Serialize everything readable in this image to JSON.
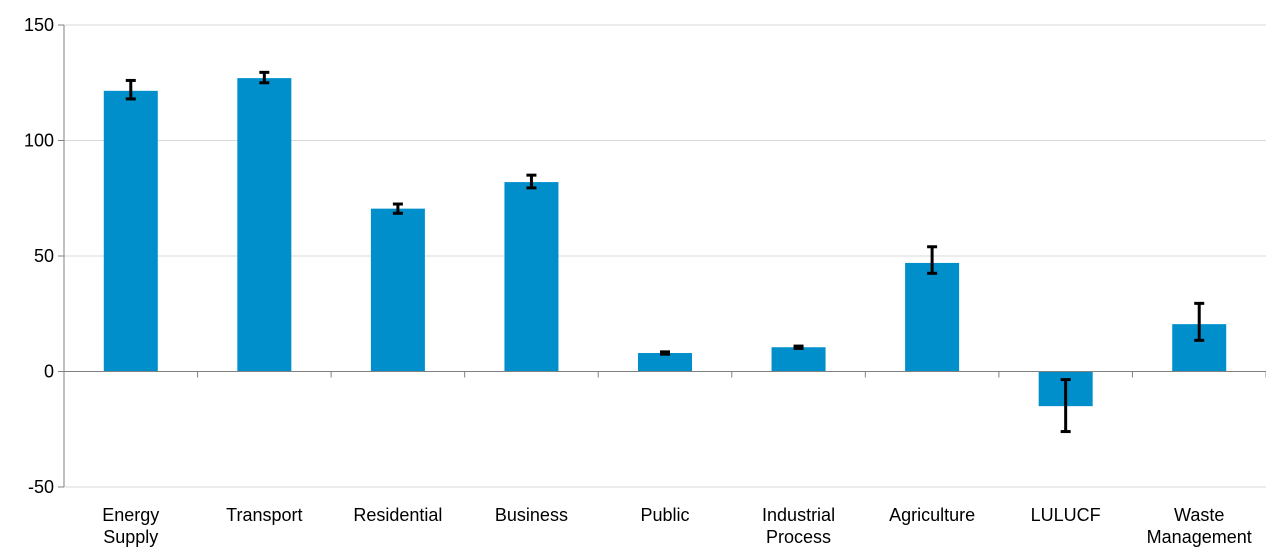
{
  "chart_data": {
    "type": "bar",
    "title": "",
    "xlabel": "",
    "ylabel": "",
    "categories": [
      [
        "Energy",
        "Supply"
      ],
      [
        "Transport"
      ],
      [
        "Residential"
      ],
      [
        "Business"
      ],
      [
        "Public"
      ],
      [
        "Industrial",
        "Process"
      ],
      [
        "Agriculture"
      ],
      [
        "LULUCF"
      ],
      [
        "Waste",
        "Management"
      ]
    ],
    "values": [
      121.5,
      127,
      70.5,
      82,
      8,
      10.5,
      47,
      -15,
      20.5
    ],
    "error_low": [
      118,
      125,
      68.5,
      79.5,
      7.5,
      10,
      42.5,
      -26,
      13.5
    ],
    "error_high": [
      126,
      129.5,
      72.5,
      85,
      8.5,
      11,
      54,
      -3.5,
      29.5
    ],
    "ylim": [
      -50,
      150
    ],
    "yticks": [
      -50,
      0,
      50,
      100,
      150
    ],
    "grid": true,
    "bar_color": "#008fca",
    "error_bar_color": "#000000",
    "grid_color": "#d9d9d9",
    "axis_color": "#808080"
  }
}
